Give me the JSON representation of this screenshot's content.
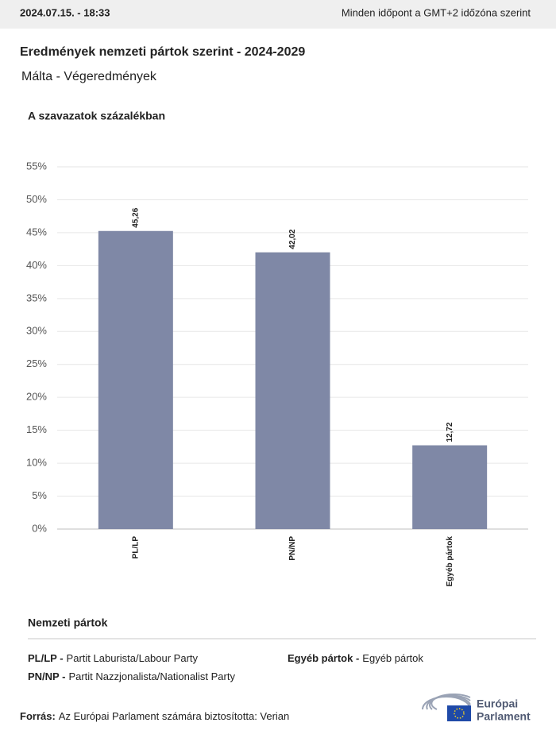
{
  "top_bar": {
    "timestamp": "2024.07.15. - 18:33",
    "timezone_note": "Minden időpont a GMT+2 időzóna szerint"
  },
  "header": {
    "title": "Eredmények nemzeti pártok szerint - 2024-2029",
    "subtitle": "Málta - Végeredmények"
  },
  "chart_data": {
    "type": "bar",
    "y_label": "A szavazatok százalékban",
    "categories": [
      "PL/LP",
      "PN/NP",
      "Egyéb pártok"
    ],
    "values": [
      45.26,
      42.02,
      12.72
    ],
    "value_labels": [
      "45,26",
      "42,02",
      "12,72"
    ],
    "color": "#7f88a6",
    "ylim": [
      0,
      55
    ],
    "yticks": [
      {
        "value": 0,
        "label": "0%"
      },
      {
        "value": 5,
        "label": "5%"
      },
      {
        "value": 10,
        "label": "10%"
      },
      {
        "value": 15,
        "label": "15%"
      },
      {
        "value": 20,
        "label": "20%"
      },
      {
        "value": 25,
        "label": "25%"
      },
      {
        "value": 30,
        "label": "30%"
      },
      {
        "value": 35,
        "label": "35%"
      },
      {
        "value": 40,
        "label": "40%"
      },
      {
        "value": 45,
        "label": "45%"
      },
      {
        "value": 50,
        "label": "50%"
      },
      {
        "value": 55,
        "label": "55%"
      }
    ],
    "grid": true
  },
  "parties": {
    "title": "Nemzeti pártok",
    "items": [
      {
        "abbr": "PL/LP -",
        "name": "Partit Laburista/Labour Party"
      },
      {
        "abbr": "PN/NP -",
        "name": "Partit Nazzjonalista/Nationalist Party"
      },
      {
        "abbr": "Egyéb pártok -",
        "name": "Egyéb pártok"
      }
    ]
  },
  "footer": {
    "source_label": "Forrás:",
    "source_text": "Az Európai Parlament számára biztosította: Verian",
    "logo_line1": "Európai",
    "logo_line2": "Parlament"
  }
}
